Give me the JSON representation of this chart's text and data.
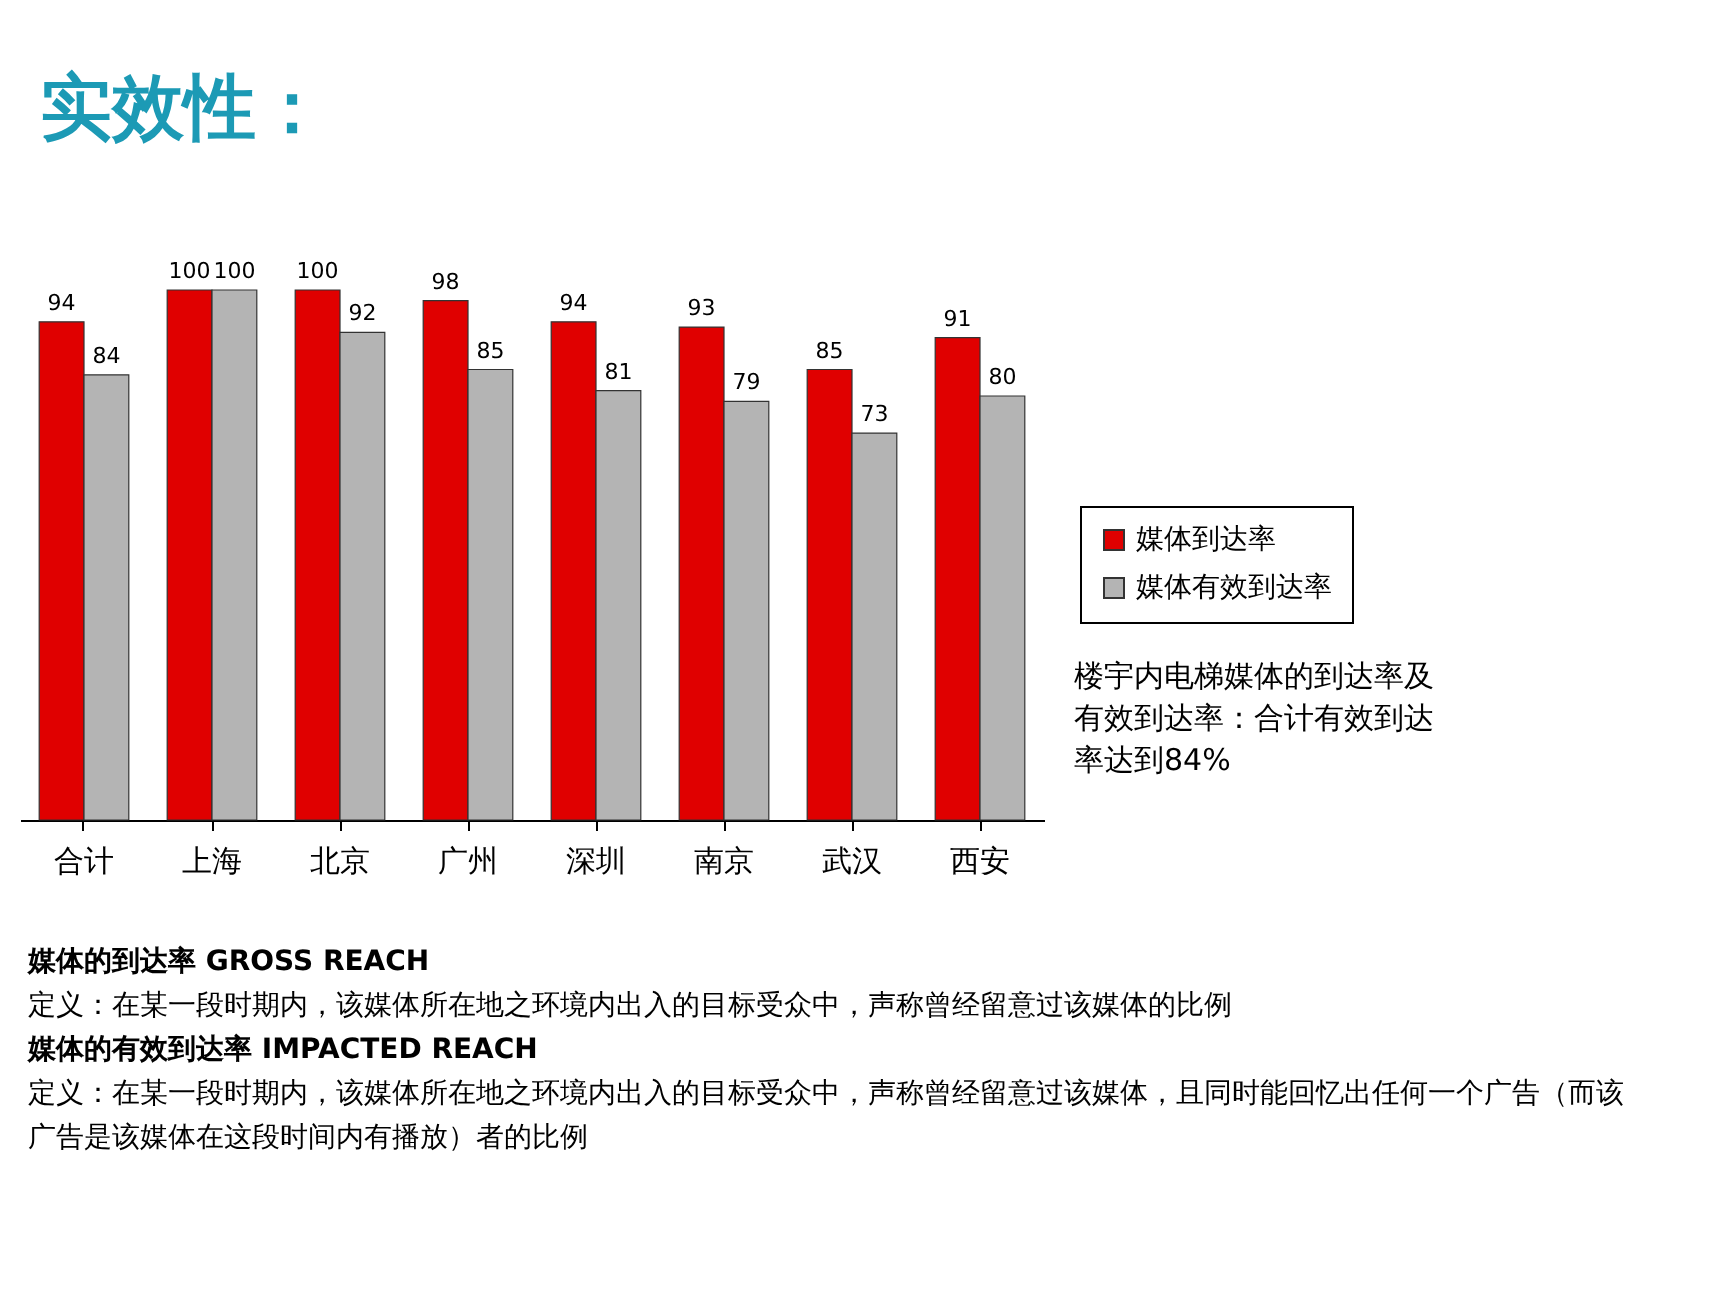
{
  "chart_data": {
    "type": "bar",
    "title": "实效性：",
    "categories": [
      "合计",
      "上海",
      "北京",
      "广州",
      "深圳",
      "南京",
      "武汉",
      "西安"
    ],
    "series": [
      {
        "name": "媒体到达率",
        "color": "#e00000",
        "values": [
          94,
          100,
          100,
          98,
          94,
          93,
          85,
          91
        ]
      },
      {
        "name": "媒体有效到达率",
        "color": "#b4b4b4",
        "values": [
          84,
          100,
          92,
          85,
          81,
          79,
          73,
          80
        ]
      }
    ],
    "data_labels": true,
    "legend": "right",
    "grid": false,
    "annotations": [
      "楼宇内电梯媒体的到达率及有效到达率：合计有效到达率达到84%",
      "媒体的到达率 GROSS REACH",
      "定义：在某一段时期内，该媒体所在地之环境内出入的目标受众中，声称曾经留意过该媒体的比例",
      "媒体的有效到达率 IMPACTED REACH",
      "定义：在某一段时期内，该媒体所在地之环境内出入的目标受众中，声称曾经留意过该媒体，且同时能回忆出任何一个广告（而该广告是该媒体在这段时间内有播放）者的比例"
    ]
  }
}
